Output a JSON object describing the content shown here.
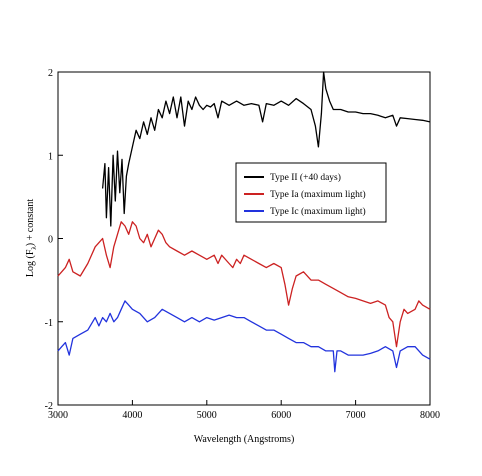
{
  "chart_data": {
    "type": "line",
    "title": "",
    "xlabel": "Wavelength (Angstroms)",
    "ylabel_main": "Log (F",
    "ylabel_sub": "λ",
    "ylabel_tail": ") + constant",
    "xlim": [
      3000,
      8000
    ],
    "ylim": [
      -2,
      2
    ],
    "x_ticks": [
      3000,
      4000,
      5000,
      6000,
      7000,
      8000
    ],
    "y_ticks": [
      -2,
      -1,
      0,
      1,
      2
    ],
    "legend_position": "right-middle",
    "series": [
      {
        "name": "Type II (+40 days)",
        "color": "#000000",
        "points": [
          [
            3600,
            0.6
          ],
          [
            3630,
            0.9
          ],
          [
            3650,
            0.25
          ],
          [
            3680,
            0.85
          ],
          [
            3710,
            0.15
          ],
          [
            3740,
            1.0
          ],
          [
            3770,
            0.45
          ],
          [
            3800,
            1.05
          ],
          [
            3830,
            0.55
          ],
          [
            3860,
            0.95
          ],
          [
            3890,
            0.3
          ],
          [
            3920,
            0.75
          ],
          [
            3950,
            0.9
          ],
          [
            4000,
            1.1
          ],
          [
            4050,
            1.3
          ],
          [
            4100,
            1.2
          ],
          [
            4150,
            1.4
          ],
          [
            4200,
            1.25
          ],
          [
            4250,
            1.45
          ],
          [
            4300,
            1.3
          ],
          [
            4350,
            1.55
          ],
          [
            4400,
            1.45
          ],
          [
            4450,
            1.65
          ],
          [
            4500,
            1.5
          ],
          [
            4550,
            1.7
          ],
          [
            4600,
            1.45
          ],
          [
            4650,
            1.7
          ],
          [
            4700,
            1.35
          ],
          [
            4750,
            1.65
          ],
          [
            4800,
            1.55
          ],
          [
            4850,
            1.7
          ],
          [
            4900,
            1.6
          ],
          [
            4950,
            1.55
          ],
          [
            5000,
            1.6
          ],
          [
            5050,
            1.58
          ],
          [
            5100,
            1.62
          ],
          [
            5150,
            1.45
          ],
          [
            5200,
            1.65
          ],
          [
            5300,
            1.6
          ],
          [
            5400,
            1.65
          ],
          [
            5500,
            1.6
          ],
          [
            5600,
            1.62
          ],
          [
            5700,
            1.6
          ],
          [
            5750,
            1.4
          ],
          [
            5800,
            1.62
          ],
          [
            5900,
            1.6
          ],
          [
            6000,
            1.65
          ],
          [
            6100,
            1.6
          ],
          [
            6200,
            1.68
          ],
          [
            6300,
            1.62
          ],
          [
            6400,
            1.55
          ],
          [
            6460,
            1.35
          ],
          [
            6500,
            1.1
          ],
          [
            6540,
            1.5
          ],
          [
            6570,
            2.0
          ],
          [
            6600,
            1.8
          ],
          [
            6650,
            1.65
          ],
          [
            6700,
            1.55
          ],
          [
            6800,
            1.55
          ],
          [
            6900,
            1.52
          ],
          [
            7000,
            1.52
          ],
          [
            7100,
            1.5
          ],
          [
            7200,
            1.5
          ],
          [
            7300,
            1.48
          ],
          [
            7400,
            1.45
          ],
          [
            7500,
            1.48
          ],
          [
            7550,
            1.35
          ],
          [
            7600,
            1.45
          ],
          [
            7700,
            1.44
          ],
          [
            7800,
            1.43
          ],
          [
            7900,
            1.42
          ],
          [
            8000,
            1.4
          ]
        ]
      },
      {
        "name": "Type Ia (maximum light)",
        "color": "#cc2222",
        "points": [
          [
            3000,
            -0.45
          ],
          [
            3050,
            -0.4
          ],
          [
            3100,
            -0.35
          ],
          [
            3150,
            -0.25
          ],
          [
            3200,
            -0.4
          ],
          [
            3300,
            -0.45
          ],
          [
            3400,
            -0.3
          ],
          [
            3500,
            -0.1
          ],
          [
            3550,
            -0.05
          ],
          [
            3600,
            0.0
          ],
          [
            3650,
            -0.2
          ],
          [
            3700,
            -0.35
          ],
          [
            3750,
            -0.1
          ],
          [
            3800,
            0.05
          ],
          [
            3850,
            0.2
          ],
          [
            3900,
            0.15
          ],
          [
            3950,
            0.05
          ],
          [
            4000,
            0.2
          ],
          [
            4050,
            0.15
          ],
          [
            4100,
            0.0
          ],
          [
            4150,
            -0.05
          ],
          [
            4200,
            0.05
          ],
          [
            4250,
            -0.1
          ],
          [
            4300,
            0.0
          ],
          [
            4350,
            0.1
          ],
          [
            4400,
            0.05
          ],
          [
            4450,
            -0.05
          ],
          [
            4500,
            -0.1
          ],
          [
            4600,
            -0.15
          ],
          [
            4700,
            -0.2
          ],
          [
            4800,
            -0.15
          ],
          [
            4900,
            -0.2
          ],
          [
            5000,
            -0.25
          ],
          [
            5100,
            -0.2
          ],
          [
            5150,
            -0.3
          ],
          [
            5200,
            -0.2
          ],
          [
            5300,
            -0.3
          ],
          [
            5350,
            -0.35
          ],
          [
            5400,
            -0.25
          ],
          [
            5450,
            -0.3
          ],
          [
            5500,
            -0.2
          ],
          [
            5600,
            -0.25
          ],
          [
            5700,
            -0.3
          ],
          [
            5800,
            -0.35
          ],
          [
            5900,
            -0.3
          ],
          [
            6000,
            -0.35
          ],
          [
            6050,
            -0.55
          ],
          [
            6100,
            -0.8
          ],
          [
            6150,
            -0.6
          ],
          [
            6200,
            -0.45
          ],
          [
            6300,
            -0.4
          ],
          [
            6400,
            -0.5
          ],
          [
            6500,
            -0.5
          ],
          [
            6600,
            -0.55
          ],
          [
            6700,
            -0.6
          ],
          [
            6800,
            -0.65
          ],
          [
            6900,
            -0.7
          ],
          [
            7000,
            -0.72
          ],
          [
            7100,
            -0.75
          ],
          [
            7200,
            -0.78
          ],
          [
            7300,
            -0.75
          ],
          [
            7400,
            -0.8
          ],
          [
            7450,
            -0.95
          ],
          [
            7500,
            -1.0
          ],
          [
            7550,
            -1.3
          ],
          [
            7600,
            -1.0
          ],
          [
            7650,
            -0.85
          ],
          [
            7700,
            -0.9
          ],
          [
            7800,
            -0.85
          ],
          [
            7850,
            -0.75
          ],
          [
            7900,
            -0.8
          ],
          [
            8000,
            -0.85
          ]
        ]
      },
      {
        "name": "Type Ic (maximum light)",
        "color": "#2233dd",
        "points": [
          [
            3000,
            -1.35
          ],
          [
            3050,
            -1.3
          ],
          [
            3100,
            -1.25
          ],
          [
            3150,
            -1.4
          ],
          [
            3200,
            -1.2
          ],
          [
            3300,
            -1.15
          ],
          [
            3400,
            -1.1
          ],
          [
            3500,
            -0.95
          ],
          [
            3550,
            -1.05
          ],
          [
            3600,
            -0.95
          ],
          [
            3650,
            -1.0
          ],
          [
            3700,
            -0.9
          ],
          [
            3750,
            -1.0
          ],
          [
            3800,
            -0.95
          ],
          [
            3850,
            -0.85
          ],
          [
            3900,
            -0.75
          ],
          [
            3950,
            -0.8
          ],
          [
            4000,
            -0.85
          ],
          [
            4100,
            -0.9
          ],
          [
            4200,
            -1.0
          ],
          [
            4300,
            -0.95
          ],
          [
            4400,
            -0.85
          ],
          [
            4500,
            -0.9
          ],
          [
            4600,
            -0.95
          ],
          [
            4700,
            -1.0
          ],
          [
            4800,
            -0.95
          ],
          [
            4900,
            -1.0
          ],
          [
            5000,
            -0.95
          ],
          [
            5100,
            -0.98
          ],
          [
            5200,
            -0.95
          ],
          [
            5300,
            -0.92
          ],
          [
            5400,
            -0.95
          ],
          [
            5500,
            -0.95
          ],
          [
            5600,
            -1.0
          ],
          [
            5700,
            -1.05
          ],
          [
            5800,
            -1.1
          ],
          [
            5900,
            -1.1
          ],
          [
            6000,
            -1.15
          ],
          [
            6100,
            -1.2
          ],
          [
            6200,
            -1.25
          ],
          [
            6300,
            -1.25
          ],
          [
            6400,
            -1.3
          ],
          [
            6500,
            -1.3
          ],
          [
            6600,
            -1.35
          ],
          [
            6700,
            -1.35
          ],
          [
            6720,
            -1.6
          ],
          [
            6750,
            -1.35
          ],
          [
            6800,
            -1.35
          ],
          [
            6900,
            -1.4
          ],
          [
            7000,
            -1.4
          ],
          [
            7100,
            -1.4
          ],
          [
            7200,
            -1.38
          ],
          [
            7300,
            -1.35
          ],
          [
            7400,
            -1.3
          ],
          [
            7500,
            -1.35
          ],
          [
            7550,
            -1.55
          ],
          [
            7600,
            -1.35
          ],
          [
            7700,
            -1.3
          ],
          [
            7800,
            -1.3
          ],
          [
            7900,
            -1.4
          ],
          [
            8000,
            -1.45
          ]
        ]
      }
    ]
  }
}
